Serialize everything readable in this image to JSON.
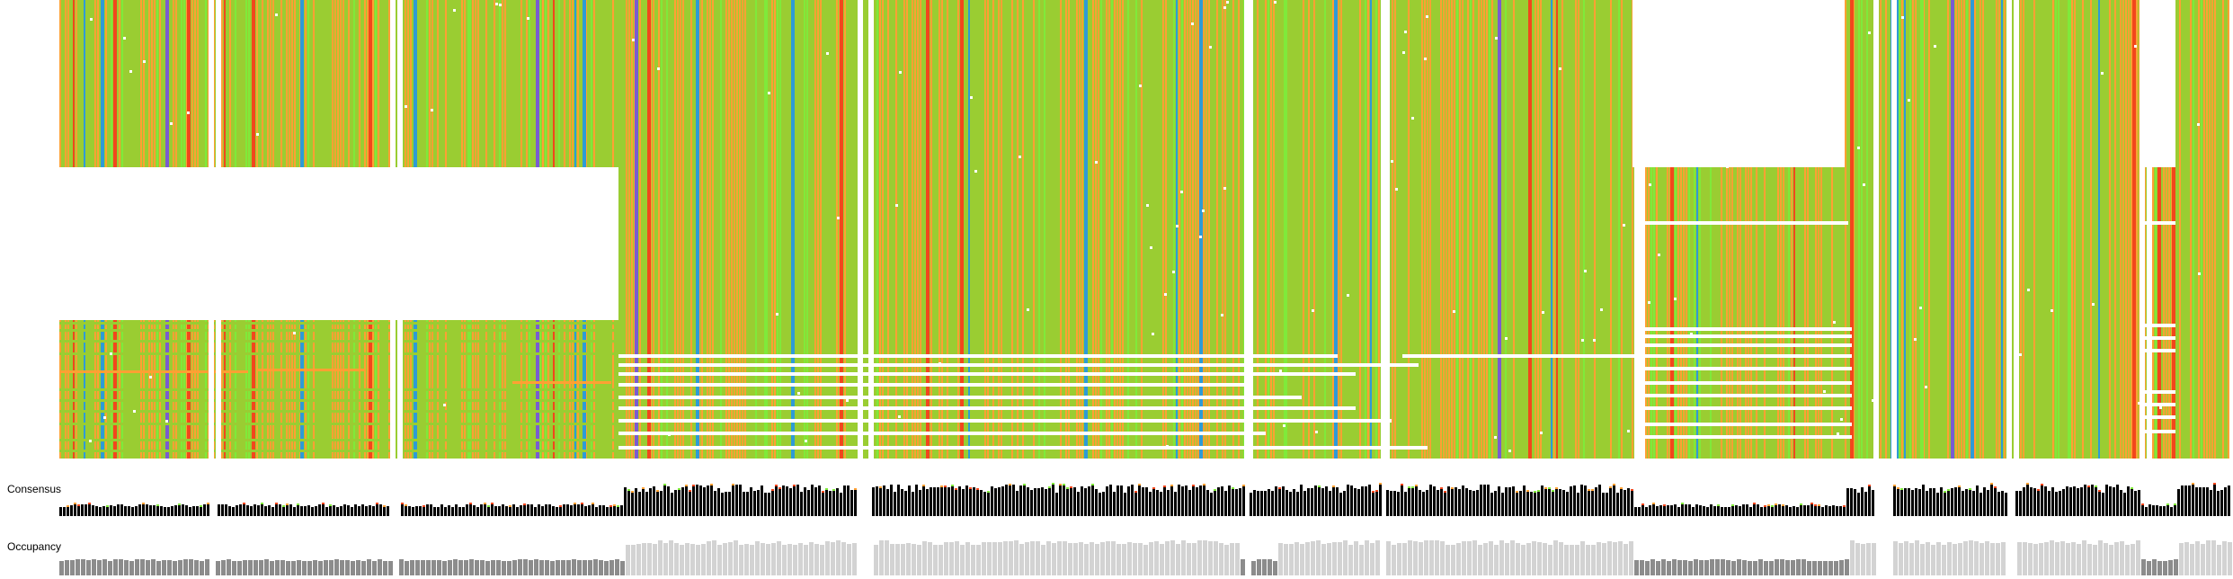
{
  "tracks": {
    "consensus_label": "Consensus",
    "occupancy_label": "Occupancy"
  },
  "palette": {
    "base": "#9ACD32",
    "orange": "#FFA033",
    "green": "#7FEA3A",
    "red": "#F2461C",
    "blue": "#2E9BD6",
    "purple": "#7A5CD0",
    "gap": "#FFFFFF",
    "consensus_bar": "#000000",
    "occupancy_low": "#8C8C8C",
    "occupancy_high": "#D3D3D3"
  }
}
